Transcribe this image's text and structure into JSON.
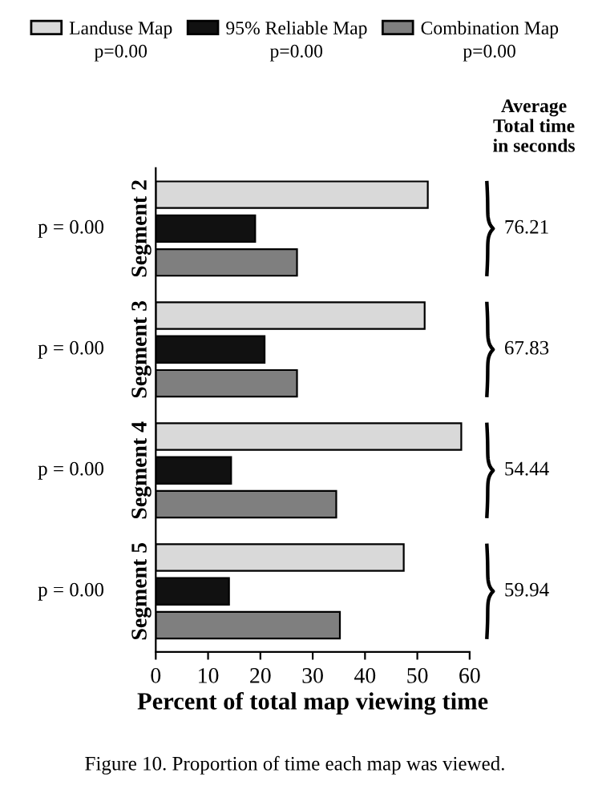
{
  "chart_data": {
    "type": "bar",
    "orientation": "horizontal",
    "categories": [
      "Segment 2",
      "Segment 3",
      "Segment 4",
      "Segment 5"
    ],
    "series": [
      {
        "name": "Landuse Map",
        "color": "#d9d9d9",
        "values": [
          52,
          51.4,
          58.4,
          47.4
        ]
      },
      {
        "name": "95% Reliable Map",
        "color": "#111111",
        "values": [
          19,
          20.8,
          14.4,
          14
        ]
      },
      {
        "name": "Combination Map",
        "color": "#7f7f7f",
        "values": [
          27,
          27,
          34.5,
          35.2
        ]
      }
    ],
    "xlabel": "Percent of total map viewing time",
    "xlim": [
      0,
      60
    ],
    "xticks": [
      0,
      10,
      20,
      30,
      40,
      50,
      60
    ],
    "grid": false,
    "legend": "top",
    "annotations": [
      "p=0.00",
      "p=0.00",
      "p=0.00",
      "Average\nTotal time\nin seconds",
      "Figure 10. Proportion of time each map was viewed.",
      "p = 0.00",
      "p = 0.00",
      "p = 0.00",
      "p = 0.00",
      "76.21",
      "67.83",
      "54.44",
      "59.94"
    ]
  }
}
